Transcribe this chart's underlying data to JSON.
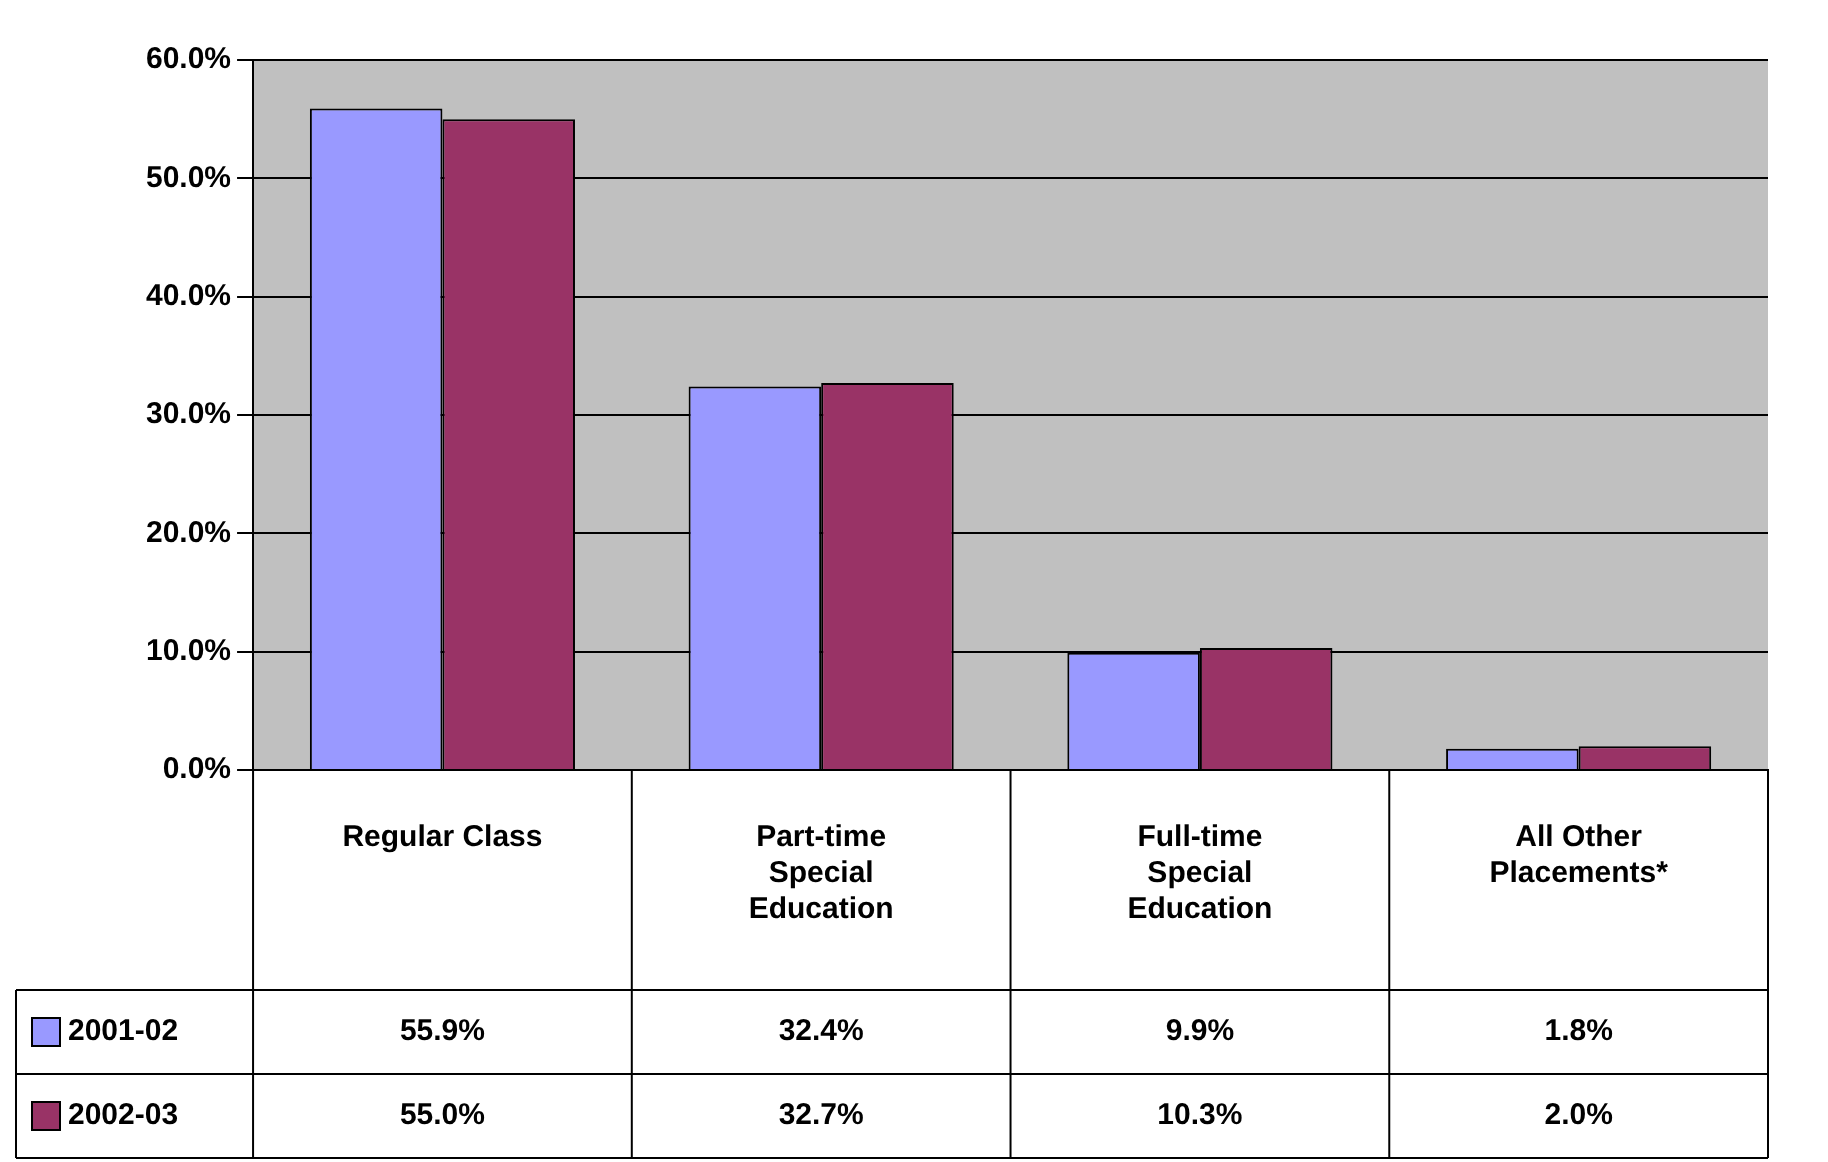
{
  "chart_data": {
    "type": "bar",
    "categories": [
      "Regular Class",
      "Part-time Special Education",
      "Full-time Special Education",
      "All Other Placements*"
    ],
    "series": [
      {
        "name": "2001-02",
        "color": "#9999ff",
        "values": [
          55.9,
          32.4,
          9.9,
          1.8
        ],
        "value_labels": [
          "55.9%",
          "32.4%",
          "9.9%",
          "1.8%"
        ]
      },
      {
        "name": "2002-03",
        "color": "#993366",
        "values": [
          55.0,
          32.7,
          10.3,
          2.0
        ],
        "value_labels": [
          "55.0%",
          "32.7%",
          "10.3%",
          "2.0%"
        ]
      }
    ],
    "ylim": [
      0,
      60
    ],
    "yticks": [
      {
        "value": 0,
        "label": "0.0%"
      },
      {
        "value": 10,
        "label": "10.0%"
      },
      {
        "value": 20,
        "label": "20.0%"
      },
      {
        "value": 30,
        "label": "30.0%"
      },
      {
        "value": 40,
        "label": "40.0%"
      },
      {
        "value": 50,
        "label": "50.0%"
      },
      {
        "value": 60,
        "label": "60.0%"
      }
    ],
    "grid": "y",
    "legend": "bottom"
  }
}
